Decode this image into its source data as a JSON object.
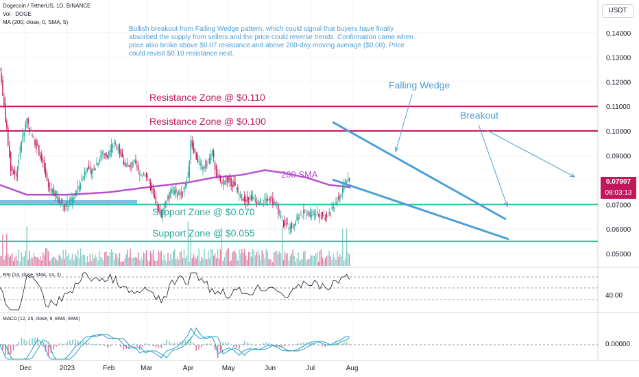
{
  "header": {
    "symbol_line": "Dogecoin / TetherUS, 1D, BINANCE",
    "volume_label": "Vol · DOGE",
    "ma_label": "MA (200, close, 0, SMA, 5)"
  },
  "annotation": "Bullish breakout from Falling Wedge pattern, which could signal that buyers have finally absorbed the supply from sellers and the price could reverse trends. Confirmation came when price also broke above $0.07 resistance and above 200-day moving average ($0.08). Price could revisit $0.10 resistance next.",
  "currency_button": "USDT",
  "price_tag": {
    "price": "0.07907",
    "countdown": "08:03:13"
  },
  "labels": {
    "resistance_110": "Resistance Zone @ $0.110",
    "resistance_100": "Resistance Zone @ $0.100",
    "support_070": "Support Zone @ $0.070",
    "support_055": "Support Zone @ $0.055",
    "sma200": "200 SMA",
    "falling_wedge": "Falling Wedge",
    "breakout": "Breakout"
  },
  "rsi": {
    "title": "RSI (14, close, SMA, 14, 2)",
    "level_label": "40.00"
  },
  "macd": {
    "title": "MACD (12, 26, close, 9, EMA, EMA)",
    "level_label": "0.00000"
  },
  "colors": {
    "up": "#26a69a",
    "down": "#c2185b",
    "sma": "#b84fd0",
    "resistance": "#c2185b",
    "support": "#26c6a0",
    "annotation": "#4a9fd8"
  },
  "chart_data": {
    "type": "candlestick",
    "y_axis_ticks": [
      "0.14000",
      "0.13000",
      "0.12000",
      "0.11000",
      "0.10000",
      "0.09000",
      "0.08000",
      "0.07000",
      "0.06000",
      "0.05000"
    ],
    "x_axis_ticks": [
      "Dec",
      "2023",
      "Feb",
      "Mar",
      "Apr",
      "May",
      "Jun",
      "Jul",
      "Aug"
    ],
    "ylim": [
      0.045,
      0.147
    ],
    "resistance_levels": [
      0.11,
      0.1
    ],
    "support_levels": [
      0.07,
      0.055
    ],
    "close_path": [
      [
        "Nov 12",
        0.125
      ],
      [
        "Nov 16",
        0.105
      ],
      [
        "Nov 20",
        0.085
      ],
      [
        "Nov 24",
        0.082
      ],
      [
        "Nov 28",
        0.096
      ],
      [
        "Dec 2",
        0.104
      ],
      [
        "Dec 6",
        0.098
      ],
      [
        "Dec 10",
        0.093
      ],
      [
        "Dec 14",
        0.086
      ],
      [
        "Dec 18",
        0.077
      ],
      [
        "Dec 22",
        0.075
      ],
      [
        "Dec 26",
        0.072
      ],
      [
        "Dec 30",
        0.069
      ],
      [
        "Jan 3",
        0.071
      ],
      [
        "Jan 7",
        0.074
      ],
      [
        "Jan 11",
        0.079
      ],
      [
        "Jan 15",
        0.085
      ],
      [
        "Jan 19",
        0.083
      ],
      [
        "Jan 23",
        0.087
      ],
      [
        "Jan 27",
        0.091
      ],
      [
        "Jan 31",
        0.09
      ],
      [
        "Feb 4",
        0.095
      ],
      [
        "Feb 8",
        0.093
      ],
      [
        "Feb 12",
        0.087
      ],
      [
        "Feb 16",
        0.085
      ],
      [
        "Feb 20",
        0.087
      ],
      [
        "Feb 24",
        0.082
      ],
      [
        "Feb 28",
        0.083
      ],
      [
        "Mar 4",
        0.077
      ],
      [
        "Mar 8",
        0.07
      ],
      [
        "Mar 12",
        0.066
      ],
      [
        "Mar 16",
        0.072
      ],
      [
        "Mar 20",
        0.076
      ],
      [
        "Mar 24",
        0.074
      ],
      [
        "Mar 28",
        0.075
      ],
      [
        "Apr 1",
        0.082
      ],
      [
        "Apr 3",
        0.096
      ],
      [
        "Apr 7",
        0.089
      ],
      [
        "Apr 11",
        0.085
      ],
      [
        "Apr 15",
        0.087
      ],
      [
        "Apr 19",
        0.091
      ],
      [
        "Apr 22",
        0.082
      ],
      [
        "Apr 26",
        0.079
      ],
      [
        "May 1",
        0.08
      ],
      [
        "May 5",
        0.078
      ],
      [
        "May 9",
        0.074
      ],
      [
        "May 13",
        0.072
      ],
      [
        "May 17",
        0.073
      ],
      [
        "May 21",
        0.072
      ],
      [
        "May 25",
        0.071
      ],
      [
        "May 29",
        0.072
      ],
      [
        "Jun 2",
        0.072
      ],
      [
        "Jun 6",
        0.069
      ],
      [
        "Jun 10",
        0.063
      ],
      [
        "Jun 14",
        0.061
      ],
      [
        "Jun 18",
        0.062
      ],
      [
        "Jun 22",
        0.065
      ],
      [
        "Jun 26",
        0.067
      ],
      [
        "Jun 30",
        0.066
      ],
      [
        "Jul 4",
        0.067
      ],
      [
        "Jul 8",
        0.066
      ],
      [
        "Jul 12",
        0.065
      ],
      [
        "Jul 16",
        0.067
      ],
      [
        "Jul 20",
        0.071
      ],
      [
        "Jul 24",
        0.075
      ],
      [
        "Jul 27",
        0.08
      ],
      [
        "Jul 30",
        0.079
      ]
    ],
    "sma200": [
      [
        "Nov 12",
        0.078
      ],
      [
        "Dec 2",
        0.074
      ],
      [
        "Jan 1",
        0.074
      ],
      [
        "Feb 1",
        0.075
      ],
      [
        "Mar 1",
        0.077
      ],
      [
        "Apr 1",
        0.079
      ],
      [
        "Apr 20",
        0.081
      ],
      [
        "May 10",
        0.082
      ],
      [
        "May 28",
        0.084
      ],
      [
        "Jun 10",
        0.083
      ],
      [
        "Jun 28",
        0.081
      ],
      [
        "Jul 15",
        0.078
      ],
      [
        "Jul 31",
        0.077
      ]
    ]
  }
}
